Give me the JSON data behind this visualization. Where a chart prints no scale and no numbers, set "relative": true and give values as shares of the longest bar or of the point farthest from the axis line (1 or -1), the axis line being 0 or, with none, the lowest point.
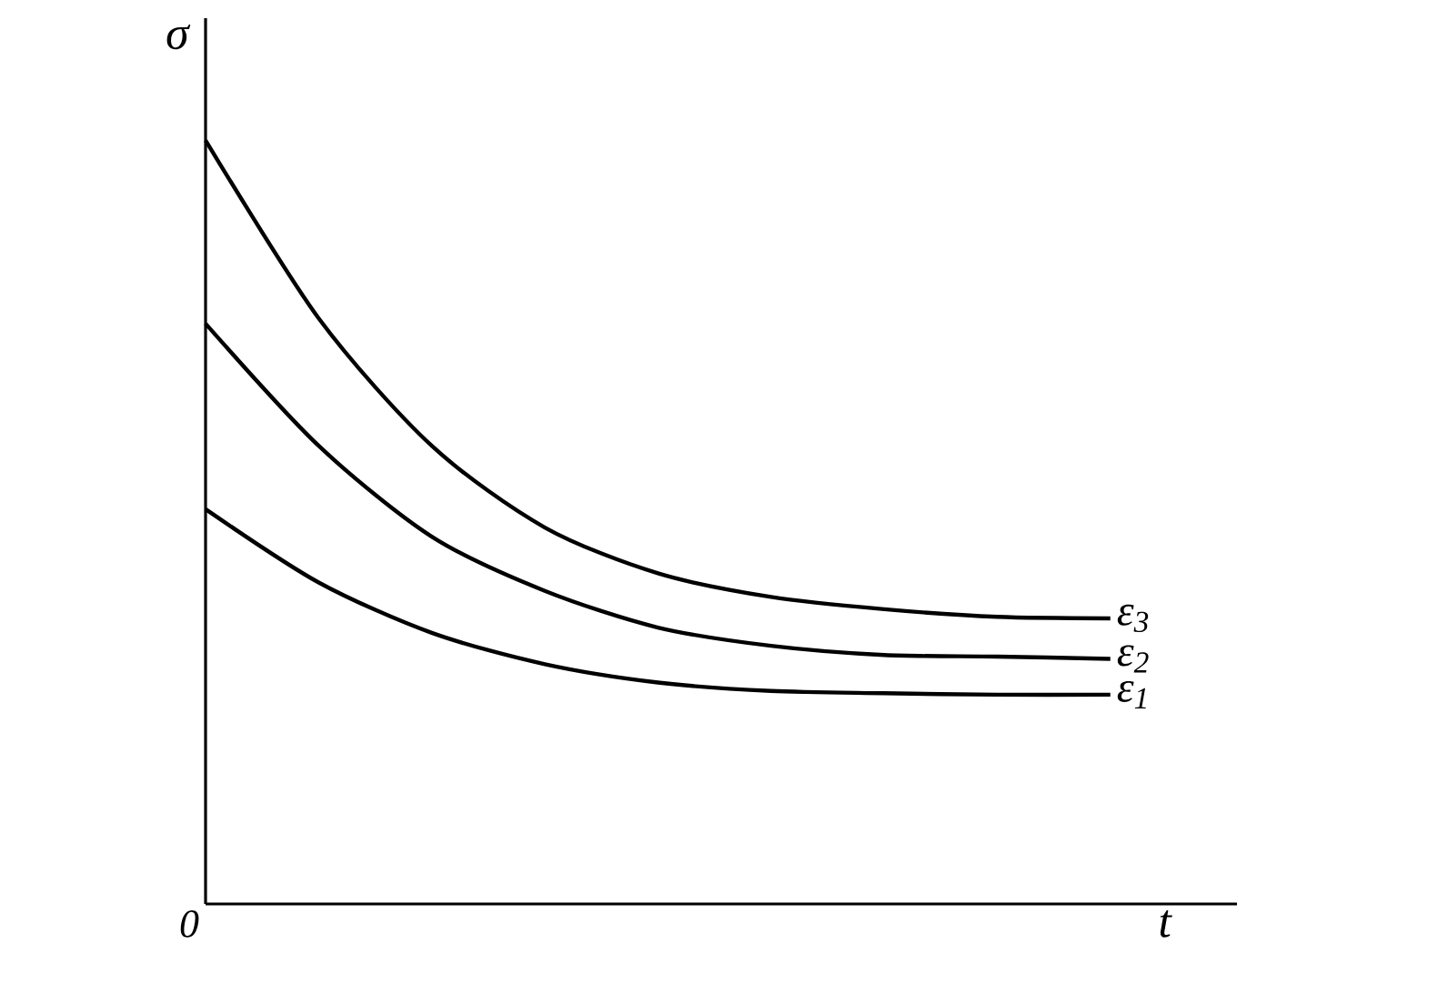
{
  "chart_data": {
    "type": "line",
    "relative": true,
    "xlabel": "t",
    "ylabel": "σ",
    "categories": [
      null,
      null,
      null,
      null,
      null,
      null,
      null,
      null,
      null
    ],
    "series": [
      {
        "name": "ε$_{3}$",
        "color": "#000000",
        "values": [
          1,
          0.767,
          0.6,
          0.493,
          0.433,
          0.402,
          0.386,
          0.376,
          0.374
        ]
      },
      {
        "name": "ε$_{2}$",
        "color": "#000000",
        "values": [
          0.76,
          0.6,
          0.481,
          0.41,
          0.362,
          0.338,
          0.326,
          0.324,
          0.321
        ]
      },
      {
        "name": "ε$_{1}$",
        "color": "#000000",
        "values": [
          0.517,
          0.421,
          0.355,
          0.314,
          0.29,
          0.279,
          0.276,
          0.274,
          0.274
        ]
      }
    ],
    "annotations": [
      "0"
    ]
  }
}
